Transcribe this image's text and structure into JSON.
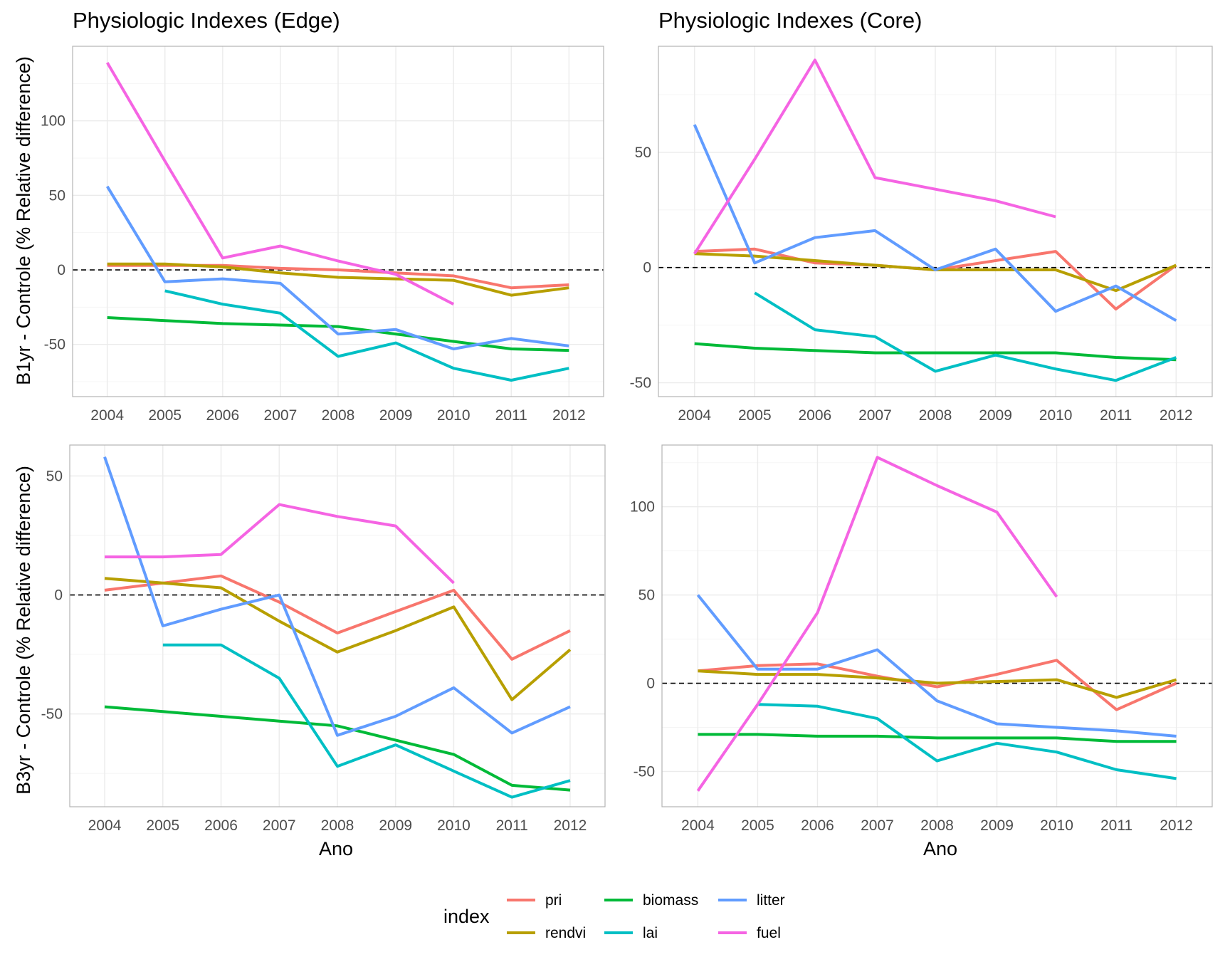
{
  "legend": {
    "title": "index",
    "entries": [
      {
        "key": "pri",
        "label": "pri",
        "color": "#F8766D"
      },
      {
        "key": "rendvi",
        "label": "rendvi",
        "color": "#B79F00"
      },
      {
        "key": "biomass",
        "label": "biomass",
        "color": "#00BA38"
      },
      {
        "key": "lai",
        "label": "lai",
        "color": "#00BFC4"
      },
      {
        "key": "litter",
        "label": "litter",
        "color": "#619CFF"
      },
      {
        "key": "fuel",
        "label": "fuel",
        "color": "#F564E3"
      }
    ]
  },
  "chart_data": [
    {
      "type": "line",
      "title": "Physiologic Indexes (Edge)",
      "xlabel": "",
      "ylabel": "B1yr - Controle (% Relative difference)",
      "x": [
        2004,
        2005,
        2006,
        2007,
        2008,
        2009,
        2010,
        2011,
        2012
      ],
      "x_tick_labels": [
        "2004",
        "2005",
        "2006",
        "2007",
        "2008",
        "2009",
        "2010",
        "2011",
        "2012"
      ],
      "xlim": [
        2003.4,
        2012.6
      ],
      "ylim": [
        -85,
        150
      ],
      "y_ticks": [
        -50,
        0,
        50,
        100
      ],
      "y_tick_labels": [
        "-50",
        "0",
        "50",
        "100"
      ],
      "reference_line": 0,
      "grid": true,
      "series": [
        {
          "name": "pri",
          "values": [
            3,
            3,
            3,
            1,
            0,
            -2,
            -4,
            -12,
            -10
          ]
        },
        {
          "name": "rendvi",
          "values": [
            4,
            4,
            2,
            -2,
            -5,
            -6,
            -7,
            -17,
            -12
          ]
        },
        {
          "name": "biomass",
          "values": [
            -32,
            -34,
            -36,
            -37,
            -38,
            -43,
            -48,
            -53,
            -54
          ]
        },
        {
          "name": "lai",
          "values": [
            null,
            -14,
            -23,
            -29,
            -58,
            -49,
            -66,
            -74,
            -66
          ]
        },
        {
          "name": "litter",
          "values": [
            56,
            -8,
            -6,
            -9,
            -43,
            -40,
            -53,
            -46,
            -51
          ]
        },
        {
          "name": "fuel",
          "values": [
            139,
            73,
            8,
            16,
            6,
            -3,
            -23,
            null,
            null
          ]
        }
      ]
    },
    {
      "type": "line",
      "title": "Physiologic Indexes (Core)",
      "xlabel": "",
      "ylabel": "",
      "x": [
        2004,
        2005,
        2006,
        2007,
        2008,
        2009,
        2010,
        2011,
        2012
      ],
      "x_tick_labels": [
        "2004",
        "2005",
        "2006",
        "2007",
        "2008",
        "2009",
        "2010",
        "2011",
        "2012"
      ],
      "xlim": [
        2003.4,
        2012.6
      ],
      "ylim": [
        -56,
        96
      ],
      "y_ticks": [
        -50,
        0,
        50
      ],
      "y_tick_labels": [
        "-50",
        "0",
        "50"
      ],
      "reference_line": 0,
      "grid": true,
      "series": [
        {
          "name": "pri",
          "values": [
            7,
            8,
            2,
            1,
            -1,
            3,
            7,
            -18,
            1
          ]
        },
        {
          "name": "rendvi",
          "values": [
            6,
            5,
            3,
            1,
            -1,
            -1,
            -1,
            -10,
            1
          ]
        },
        {
          "name": "biomass",
          "values": [
            -33,
            -35,
            -36,
            -37,
            -37,
            -37,
            -37,
            -39,
            -40
          ]
        },
        {
          "name": "lai",
          "values": [
            null,
            -11,
            -27,
            -30,
            -45,
            -38,
            -44,
            -49,
            -39
          ]
        },
        {
          "name": "litter",
          "values": [
            62,
            2,
            13,
            16,
            -1,
            8,
            -19,
            -8,
            -23
          ]
        },
        {
          "name": "fuel",
          "values": [
            6,
            47,
            90,
            39,
            34,
            29,
            22,
            null,
            null
          ]
        }
      ]
    },
    {
      "type": "line",
      "title": "",
      "xlabel": "Ano",
      "ylabel": "B3yr - Controle (% Relative difference)",
      "x": [
        2004,
        2005,
        2006,
        2007,
        2008,
        2009,
        2010,
        2011,
        2012
      ],
      "x_tick_labels": [
        "2004",
        "2005",
        "2006",
        "2007",
        "2008",
        "2009",
        "2010",
        "2011",
        "2012"
      ],
      "xlim": [
        2003.4,
        2012.6
      ],
      "ylim": [
        -89,
        63
      ],
      "y_ticks": [
        -50,
        0,
        50
      ],
      "y_tick_labels": [
        "-50",
        "0",
        "50"
      ],
      "reference_line": 0,
      "grid": true,
      "series": [
        {
          "name": "pri",
          "values": [
            2,
            5,
            8,
            -3,
            -16,
            -7,
            2,
            -27,
            -15
          ]
        },
        {
          "name": "rendvi",
          "values": [
            7,
            5,
            3,
            -11,
            -24,
            -15,
            -5,
            -44,
            -23
          ]
        },
        {
          "name": "biomass",
          "values": [
            -47,
            -49,
            -51,
            -53,
            -55,
            -61,
            -67,
            -80,
            -82
          ]
        },
        {
          "name": "lai",
          "values": [
            null,
            -21,
            -21,
            -35,
            -72,
            -63,
            -74,
            -85,
            -78
          ]
        },
        {
          "name": "litter",
          "values": [
            58,
            -13,
            -6,
            0,
            -59,
            -51,
            -39,
            -58,
            -47
          ]
        },
        {
          "name": "fuel",
          "values": [
            16,
            16,
            17,
            38,
            33,
            29,
            5,
            null,
            null
          ]
        }
      ]
    },
    {
      "type": "line",
      "title": "",
      "xlabel": "Ano",
      "ylabel": "",
      "x": [
        2004,
        2005,
        2006,
        2007,
        2008,
        2009,
        2010,
        2011,
        2012
      ],
      "x_tick_labels": [
        "2004",
        "2005",
        "2006",
        "2007",
        "2008",
        "2009",
        "2010",
        "2011",
        "2012"
      ],
      "xlim": [
        2003.4,
        2012.6
      ],
      "ylim": [
        -70,
        135
      ],
      "y_ticks": [
        -50,
        0,
        50,
        100
      ],
      "y_tick_labels": [
        "-50",
        "0",
        "50",
        "100"
      ],
      "reference_line": 0,
      "grid": true,
      "series": [
        {
          "name": "pri",
          "values": [
            7,
            10,
            11,
            4,
            -2,
            5,
            13,
            -15,
            0
          ]
        },
        {
          "name": "rendvi",
          "values": [
            7,
            5,
            5,
            3,
            0,
            1,
            2,
            -8,
            2
          ]
        },
        {
          "name": "biomass",
          "values": [
            -29,
            -29,
            -30,
            -30,
            -31,
            -31,
            -31,
            -33,
            -33
          ]
        },
        {
          "name": "lai",
          "values": [
            null,
            -12,
            -13,
            -20,
            -44,
            -34,
            -39,
            -49,
            -54
          ]
        },
        {
          "name": "litter",
          "values": [
            50,
            8,
            8,
            19,
            -10,
            -23,
            -25,
            -27,
            -30
          ]
        },
        {
          "name": "fuel",
          "values": [
            -61,
            -12,
            40,
            128,
            112,
            97,
            49,
            null,
            null
          ]
        }
      ]
    }
  ]
}
